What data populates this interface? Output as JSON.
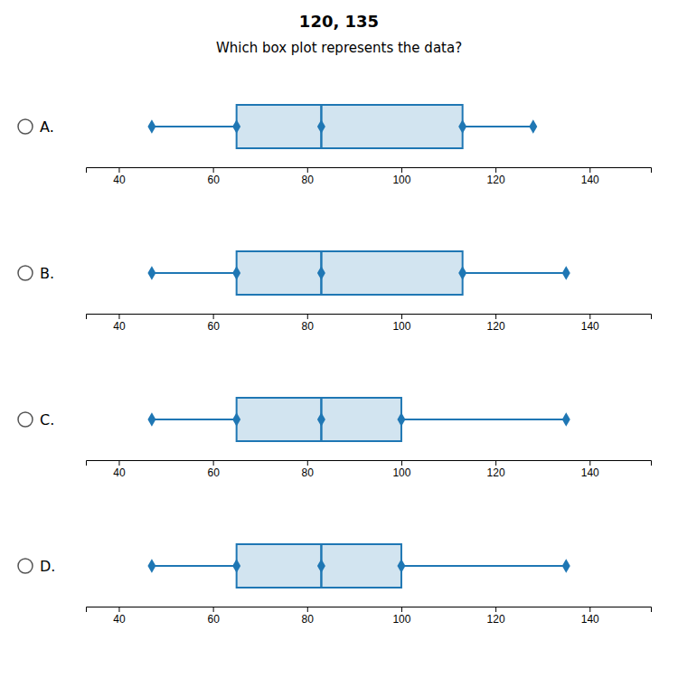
{
  "chart_data": {
    "type": "box",
    "orientation": "horizontal",
    "title": "120, 135",
    "subtitle": "Which box plot represents the data?",
    "categories": [
      "A.",
      "B.",
      "C.",
      "D."
    ],
    "min": [
      47,
      47,
      47,
      47
    ],
    "q1": [
      65,
      65,
      65,
      65
    ],
    "median": [
      83,
      83,
      83,
      83
    ],
    "q3": [
      113,
      113,
      100,
      100
    ],
    "max": [
      128,
      135,
      135,
      135
    ],
    "xlim": [
      33,
      153
    ],
    "xticks": [
      40,
      60,
      80,
      100,
      120,
      140
    ],
    "grid": false
  }
}
